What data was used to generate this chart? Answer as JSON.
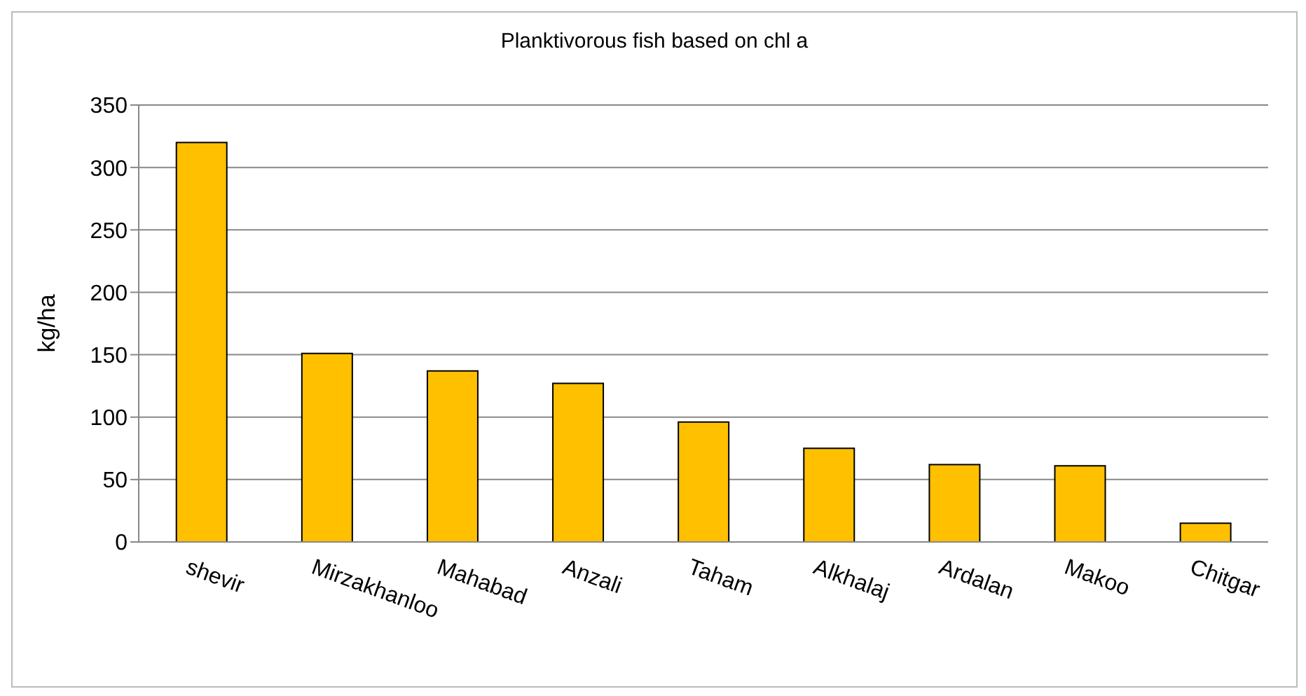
{
  "chart_data": {
    "type": "bar",
    "title": "Planktivorous fish based on chl a",
    "ylabel": "kg/ha",
    "categories": [
      "shevir",
      "Mirzakhanloo",
      "Mahabad",
      "Anzali",
      "Taham",
      "Alkhalaj",
      "Ardalan",
      "Makoo",
      "Chitgar"
    ],
    "values": [
      320,
      151,
      137,
      127,
      96,
      75,
      62,
      61,
      15
    ],
    "color": "#ffc000",
    "ylim": [
      0,
      350
    ],
    "yticks": [
      0,
      50,
      100,
      150,
      200,
      250,
      300,
      350
    ],
    "grid": "y"
  }
}
